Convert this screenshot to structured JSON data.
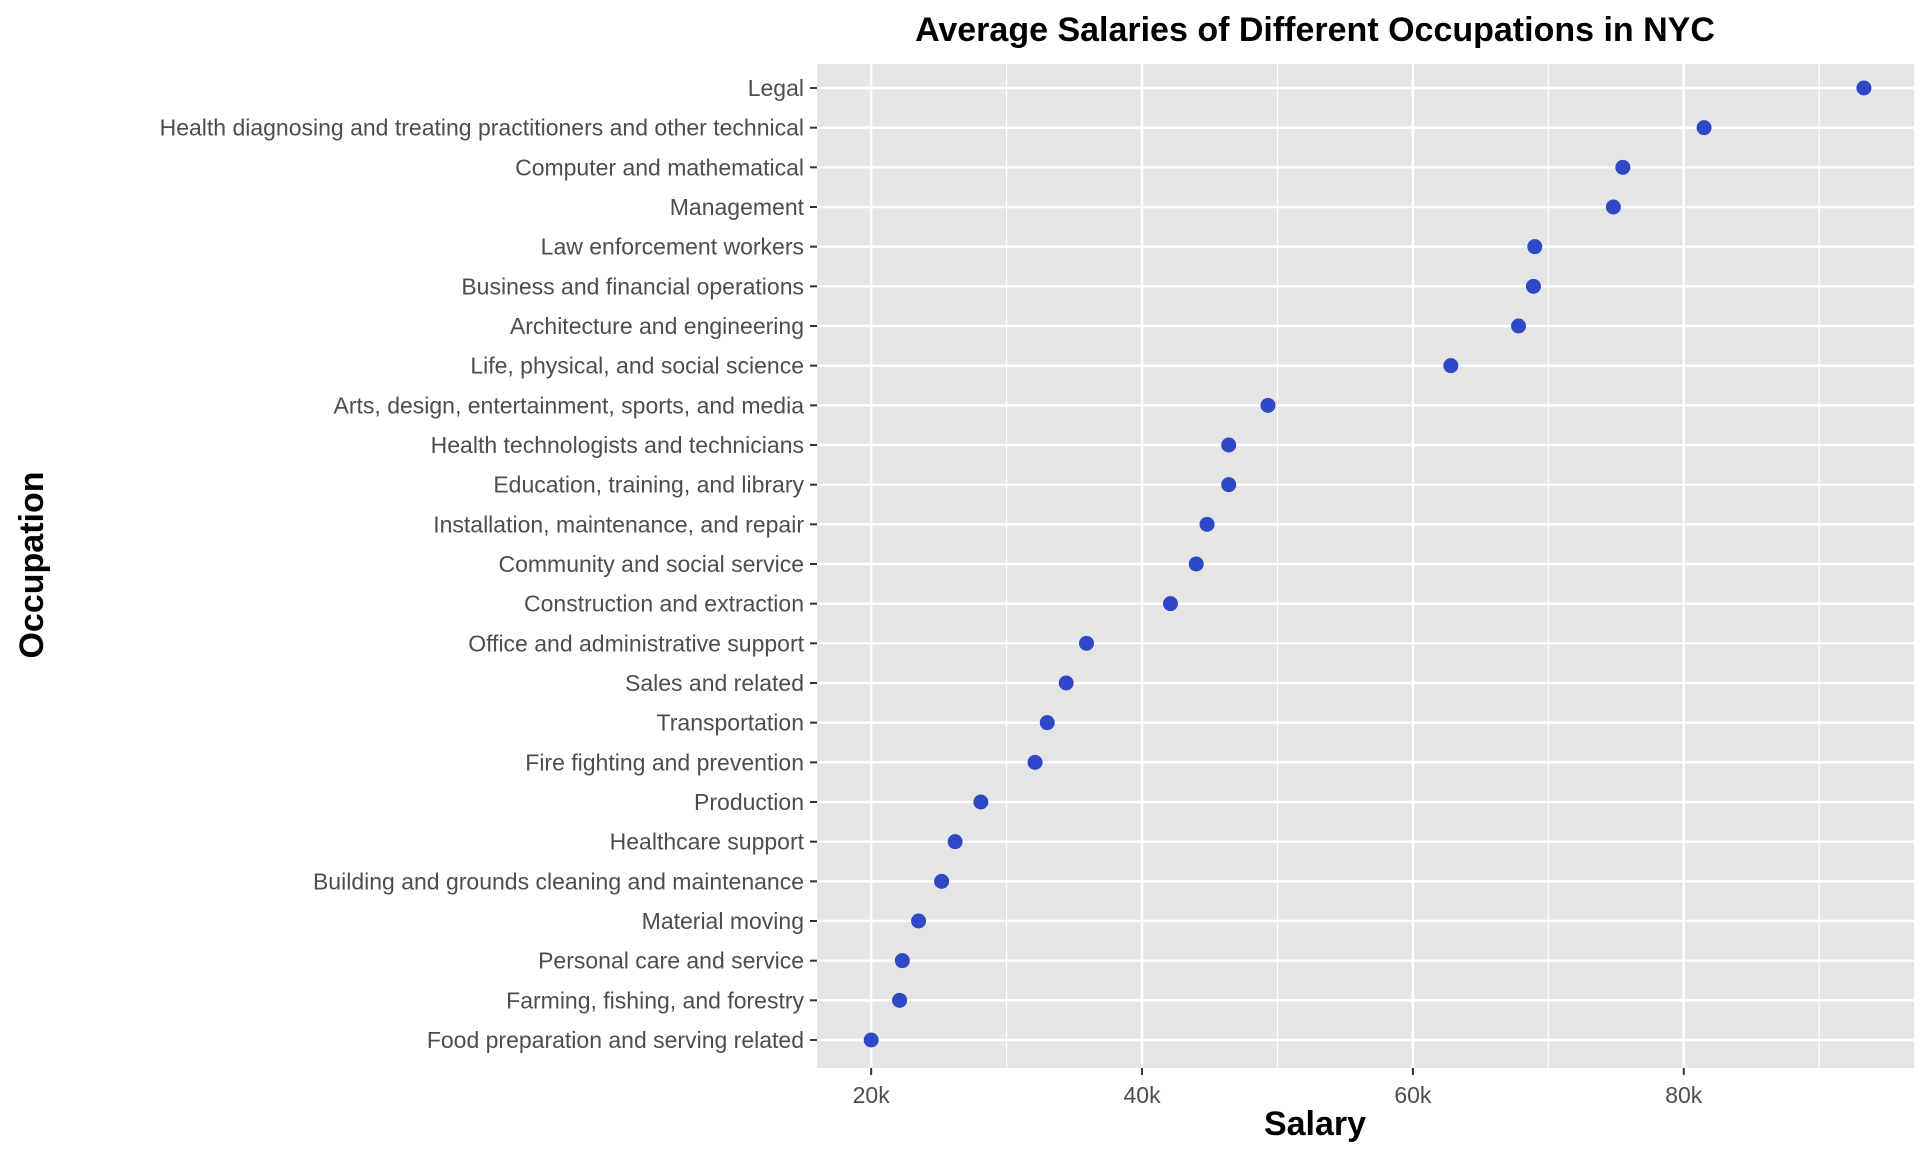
{
  "chart_data": {
    "type": "scatter",
    "title": "Average Salaries of Different Occupations in NYC",
    "xlabel": "Salary",
    "ylabel": "Occupation",
    "xlim": [
      16000,
      97000
    ],
    "x_ticks": [
      20000,
      40000,
      60000,
      80000
    ],
    "x_tick_labels": [
      "20k",
      "40k",
      "60k",
      "80k"
    ],
    "grid": true,
    "legend": "none",
    "point_color": "#2f48c6",
    "panel_color": "#e5e5e5",
    "grid_color": "#ffffff",
    "categories": [
      "Legal",
      "Health diagnosing and treating practitioners and other technical",
      "Computer and mathematical",
      "Management",
      "Law enforcement workers",
      "Business and financial operations",
      "Architecture and engineering",
      "Life, physical, and social science",
      "Arts, design, entertainment, sports, and media",
      "Health technologists and technicians",
      "Education, training, and library",
      "Installation, maintenance, and repair",
      "Community and social service",
      "Construction and extraction",
      "Office and administrative support",
      "Sales and related",
      "Transportation",
      "Fire fighting and prevention",
      "Production",
      "Healthcare support",
      "Building and grounds cleaning and maintenance",
      "Material moving",
      "Personal care and service",
      "Farming, fishing, and forestry",
      "Food preparation and serving related"
    ],
    "values": [
      93300,
      81500,
      75500,
      74800,
      69000,
      68900,
      67800,
      62800,
      49300,
      46400,
      46400,
      44800,
      44000,
      42100,
      35900,
      34400,
      33000,
      32100,
      28100,
      26200,
      25200,
      23500,
      22300,
      22100,
      20000
    ]
  }
}
